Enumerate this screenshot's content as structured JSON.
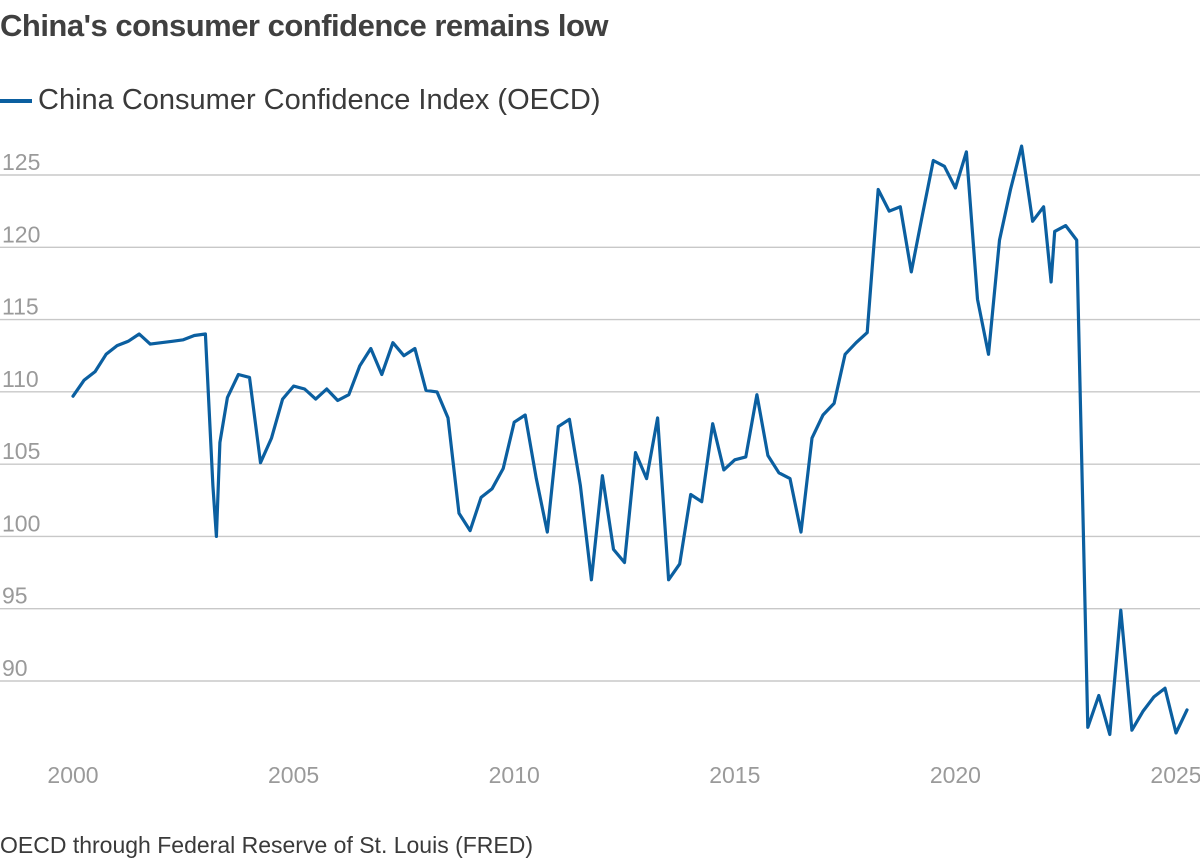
{
  "chart_data": {
    "type": "line",
    "title": "China's consumer confidence remains low",
    "source": "OECD through Federal Reserve of St. Louis (FRED)",
    "xlabel": "",
    "ylabel": "",
    "x_ticks": [
      "2000",
      "2005",
      "2010",
      "2015",
      "2020",
      "2025"
    ],
    "y_ticks": [
      "90",
      "95",
      "100",
      "105",
      "110",
      "115",
      "120",
      "125"
    ],
    "xlim": [
      2000,
      2025
    ],
    "ylim": [
      85,
      128
    ],
    "grid": true,
    "legend_position": "top-left",
    "series_color": "#0b5fa0",
    "series": [
      {
        "name": "China Consumer Confidence Index (OECD)",
        "x": [
          2000.0,
          2000.25,
          2000.5,
          2000.75,
          2001.0,
          2001.25,
          2001.5,
          2001.75,
          2002.0,
          2002.25,
          2002.5,
          2002.75,
          2003.0,
          2003.17,
          2003.25,
          2003.33,
          2003.5,
          2003.75,
          2004.0,
          2004.25,
          2004.5,
          2004.75,
          2005.0,
          2005.25,
          2005.5,
          2005.75,
          2006.0,
          2006.25,
          2006.5,
          2006.75,
          2007.0,
          2007.25,
          2007.5,
          2007.75,
          2008.0,
          2008.25,
          2008.5,
          2008.75,
          2009.0,
          2009.25,
          2009.5,
          2009.75,
          2010.0,
          2010.25,
          2010.5,
          2010.75,
          2011.0,
          2011.25,
          2011.5,
          2011.75,
          2012.0,
          2012.25,
          2012.5,
          2012.75,
          2013.0,
          2013.25,
          2013.5,
          2013.75,
          2014.0,
          2014.25,
          2014.5,
          2014.75,
          2015.0,
          2015.25,
          2015.5,
          2015.75,
          2016.0,
          2016.25,
          2016.5,
          2016.75,
          2017.0,
          2017.25,
          2017.5,
          2017.75,
          2018.0,
          2018.25,
          2018.5,
          2018.75,
          2019.0,
          2019.25,
          2019.5,
          2019.75,
          2020.0,
          2020.25,
          2020.5,
          2020.75,
          2021.0,
          2021.25,
          2021.5,
          2021.75,
          2022.0,
          2022.17,
          2022.25,
          2022.5,
          2022.75,
          2023.0,
          2023.25,
          2023.5,
          2023.75,
          2024.0,
          2024.25,
          2024.5,
          2024.75,
          2025.0,
          2025.25
        ],
        "values": [
          109.7,
          110.8,
          111.4,
          112.6,
          113.2,
          113.5,
          114.0,
          113.3,
          113.4,
          113.5,
          113.6,
          113.9,
          114.0,
          103.5,
          100.0,
          106.5,
          109.6,
          111.2,
          111.0,
          105.1,
          106.8,
          109.5,
          110.4,
          110.2,
          109.5,
          110.2,
          109.4,
          109.8,
          111.8,
          113.0,
          111.2,
          113.4,
          112.5,
          113.0,
          110.1,
          110.0,
          108.2,
          101.6,
          100.4,
          102.7,
          103.3,
          104.7,
          107.9,
          108.4,
          104.0,
          100.3,
          107.6,
          108.1,
          103.5,
          97.0,
          104.2,
          99.1,
          98.2,
          105.8,
          104.0,
          108.2,
          97.0,
          98.1,
          102.9,
          102.4,
          107.8,
          104.6,
          105.3,
          105.5,
          109.8,
          105.6,
          104.4,
          104.0,
          100.3,
          106.8,
          108.4,
          109.2,
          112.6,
          113.4,
          114.1,
          124.0,
          122.5,
          122.8,
          118.3,
          122.2,
          126.0,
          125.6,
          124.1,
          126.6,
          116.4,
          112.6,
          120.5,
          124.0,
          127.0,
          121.8,
          122.8,
          117.6,
          121.1,
          121.5,
          120.5,
          86.8,
          89.0,
          86.3,
          94.9,
          86.6,
          87.9,
          88.9,
          89.5,
          86.4,
          88.0
        ]
      }
    ]
  }
}
